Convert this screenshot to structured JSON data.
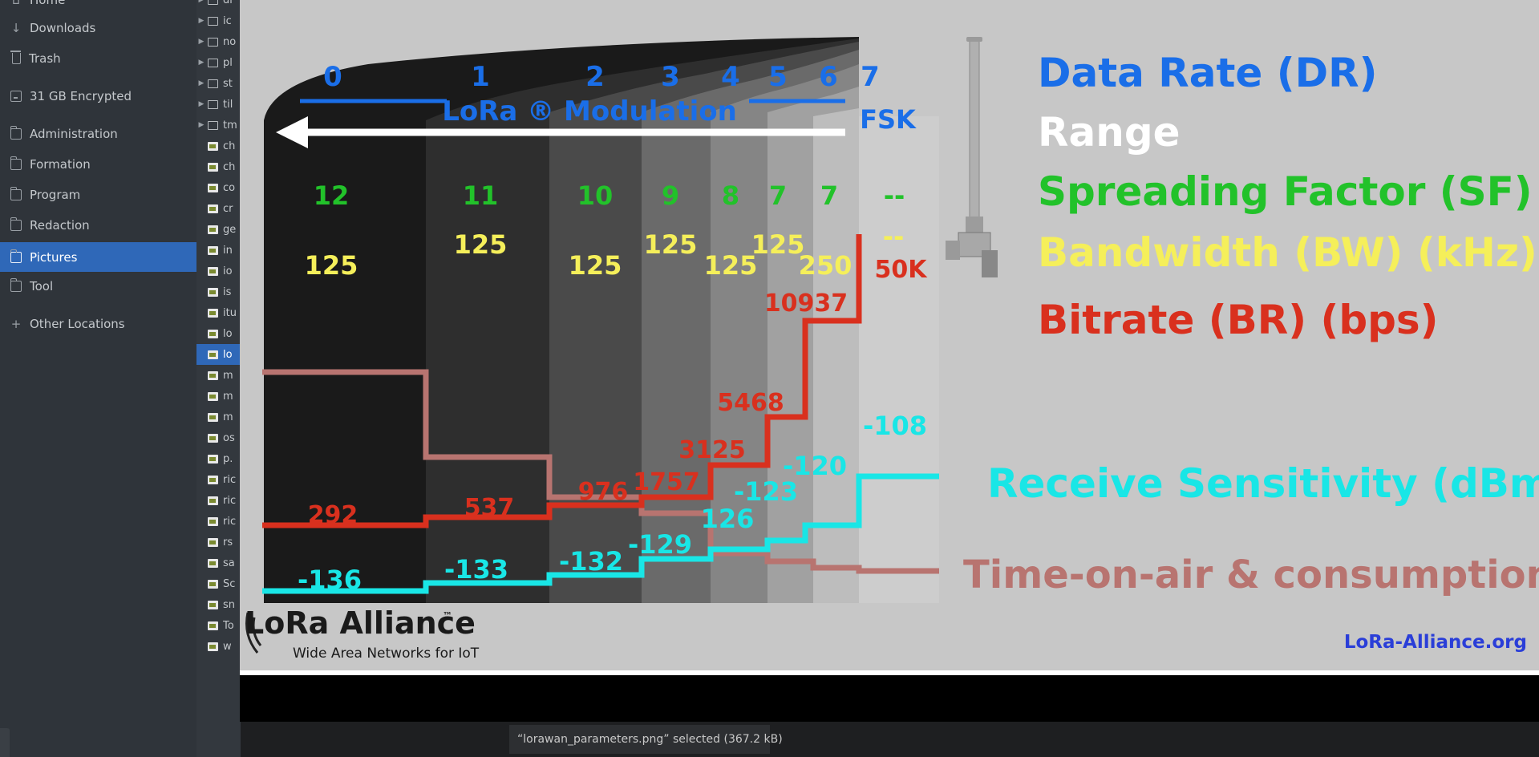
{
  "sidebar": {
    "items": [
      {
        "label": "Home",
        "icon": "home-icon"
      },
      {
        "label": "Downloads",
        "icon": "download-icon"
      },
      {
        "label": "Trash",
        "icon": "trash-icon"
      },
      {
        "label": "31 GB Encrypted",
        "icon": "drive-icon"
      },
      {
        "label": "Administration",
        "icon": "folder-icon"
      },
      {
        "label": "Formation",
        "icon": "folder-icon"
      },
      {
        "label": "Program",
        "icon": "folder-icon"
      },
      {
        "label": "Redaction",
        "icon": "folder-icon"
      },
      {
        "label": "Pictures",
        "icon": "folder-icon",
        "active": true
      },
      {
        "label": "Tool",
        "icon": "folder-icon"
      },
      {
        "label": "Other Locations",
        "icon": "plus-icon"
      }
    ]
  },
  "files": [
    {
      "label": "dr",
      "type": "folder"
    },
    {
      "label": "ic",
      "type": "folder"
    },
    {
      "label": "no",
      "type": "folder"
    },
    {
      "label": "pl",
      "type": "folder"
    },
    {
      "label": "st",
      "type": "folder"
    },
    {
      "label": "til",
      "type": "folder"
    },
    {
      "label": "tm",
      "type": "folder"
    },
    {
      "label": "ch",
      "type": "file"
    },
    {
      "label": "ch",
      "type": "file"
    },
    {
      "label": "co",
      "type": "file"
    },
    {
      "label": "cr",
      "type": "file"
    },
    {
      "label": "ge",
      "type": "file"
    },
    {
      "label": "in",
      "type": "file"
    },
    {
      "label": "io",
      "type": "file"
    },
    {
      "label": "is",
      "type": "file"
    },
    {
      "label": "itu",
      "type": "file"
    },
    {
      "label": "lo",
      "type": "file"
    },
    {
      "label": "lo",
      "type": "file",
      "selected": true
    },
    {
      "label": "m",
      "type": "file"
    },
    {
      "label": "m",
      "type": "file"
    },
    {
      "label": "m",
      "type": "file"
    },
    {
      "label": "os",
      "type": "file"
    },
    {
      "label": "p.",
      "type": "file"
    },
    {
      "label": "ric",
      "type": "file"
    },
    {
      "label": "ric",
      "type": "file"
    },
    {
      "label": "ric",
      "type": "file"
    },
    {
      "label": "rs",
      "type": "file"
    },
    {
      "label": "sa",
      "type": "file"
    },
    {
      "label": "Sc",
      "type": "file"
    },
    {
      "label": "sn",
      "type": "file"
    },
    {
      "label": "To",
      "type": "file"
    },
    {
      "label": "w",
      "type": "file"
    }
  ],
  "status": {
    "text": "“lorawan_parameters.png” selected  (367.2 kB)"
  },
  "image": {
    "dr_numbers": [
      "0",
      "1",
      "2",
      "3",
      "4",
      "5",
      "6",
      "7"
    ],
    "modulation_label": "LoRa ® Modulation",
    "fsk_label": "FSK",
    "sf_values": [
      "12",
      "11",
      "10",
      "9",
      "8",
      "7",
      "7",
      "--"
    ],
    "bw_values": [
      "125",
      "125",
      "125",
      "125",
      "125",
      "125",
      "250",
      "--"
    ],
    "fsk_rate": "50K",
    "bitrates": [
      "292",
      "537",
      "976",
      "1757",
      "3125",
      "5468",
      "10937"
    ],
    "sensitivities": [
      "-136",
      "-133",
      "-132",
      "-129",
      "126",
      "-123",
      "-120",
      "-108"
    ],
    "legend": {
      "dr": "Data Rate (DR)",
      "range": "Range",
      "sf": "Spreading Factor (SF)",
      "bw": "Bandwidth (BW) (kHz)",
      "br": "Bitrate (BR) (bps)",
      "rs": "Receive Sensitivity (dBm)",
      "toa": "Time-on-air & consumption"
    },
    "logo_text": "LoRa Alliance",
    "logo_tm": "™",
    "logo_tagline": "Wide Area Networks for IoT",
    "website": "LoRa-Alliance.org",
    "colors": {
      "blue": "#1a6ee8",
      "green": "#22c22a",
      "yellow": "#f5ef5a",
      "red": "#d9301e",
      "cyan": "#19e6e6",
      "rose": "#b87470"
    }
  }
}
